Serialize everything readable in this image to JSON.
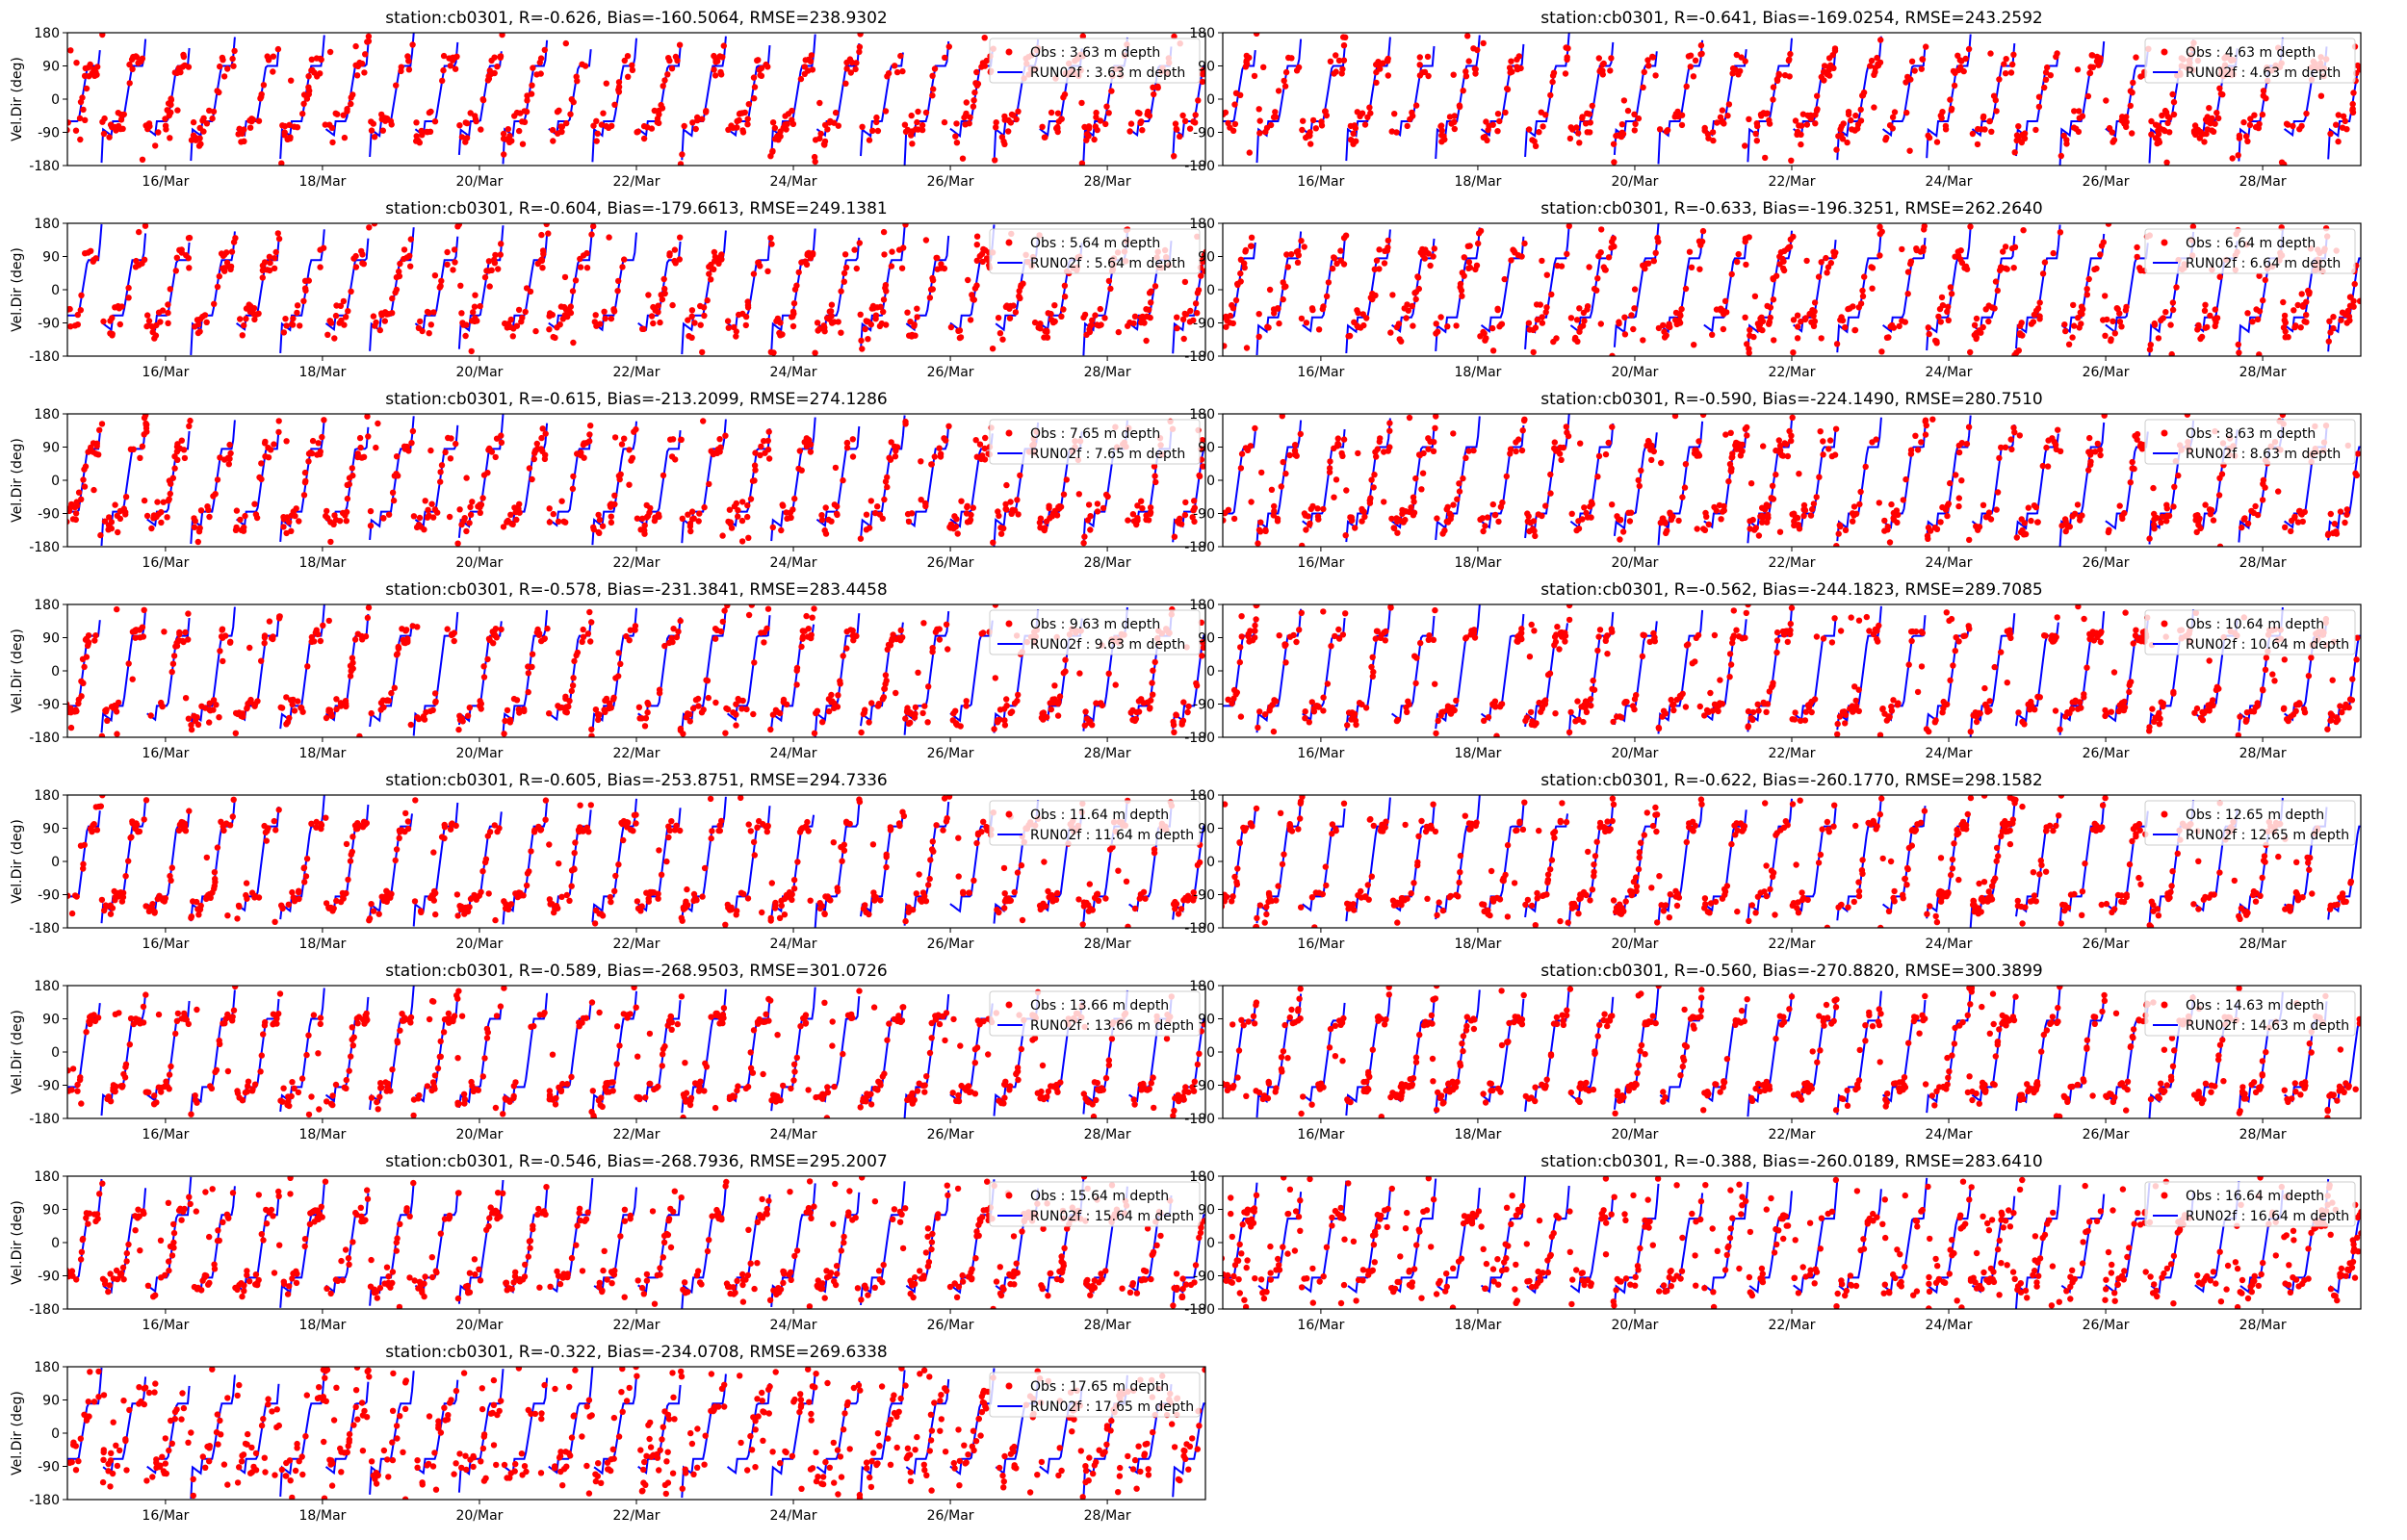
{
  "figure": {
    "background": "#ffffff",
    "obs_color": "#ff0000",
    "model_color": "#0000ff"
  },
  "chart_data": [
    {
      "type": "line",
      "title": "station:cb0301, R=-0.626, Bias=-160.5064, RMSE=238.9302",
      "ylabel": "Vel.Dir (deg)",
      "ylim": [
        -180,
        180
      ],
      "yticks": [
        "180",
        "90",
        "0",
        "-90",
        "-180"
      ],
      "x_ticks": [
        "16/Mar",
        "18/Mar",
        "20/Mar",
        "22/Mar",
        "24/Mar",
        "26/Mar",
        "28/Mar"
      ],
      "legend": [
        "Obs : 3.63 m depth",
        "RUN02f : 3.63 m depth"
      ],
      "legend_loc": "upper right",
      "series": [
        {
          "name": "Obs : 3.63 m depth",
          "style": "dots",
          "color": "#ff0000"
        },
        {
          "name": "RUN02f : 3.63 m depth",
          "style": "line",
          "color": "#0000ff"
        }
      ],
      "pattern": {
        "base": -60,
        "amp": 150,
        "scatter": 30,
        "noise_frac": 0.06,
        "seed": 11
      }
    },
    {
      "type": "line",
      "title": "station:cb0301, R=-0.641, Bias=-169.0254, RMSE=243.2592",
      "ylabel": "",
      "ylim": [
        -180,
        180
      ],
      "yticks": [
        "180",
        "90",
        "0",
        "-90",
        "-180"
      ],
      "x_ticks": [
        "16/Mar",
        "18/Mar",
        "20/Mar",
        "22/Mar",
        "24/Mar",
        "26/Mar",
        "28/Mar"
      ],
      "legend": [
        "Obs : 4.63 m depth",
        "RUN02f : 4.63 m depth"
      ],
      "legend_loc": "upper right",
      "series": [
        {
          "name": "Obs : 4.63 m depth",
          "style": "dots",
          "color": "#ff0000"
        },
        {
          "name": "RUN02f : 4.63 m depth",
          "style": "line",
          "color": "#0000ff"
        }
      ],
      "pattern": {
        "base": -60,
        "amp": 150,
        "scatter": 30,
        "noise_frac": 0.06,
        "seed": 12
      }
    },
    {
      "type": "line",
      "title": "station:cb0301, R=-0.604, Bias=-179.6613, RMSE=249.1381",
      "ylabel": "Vel.Dir (deg)",
      "ylim": [
        -180,
        180
      ],
      "yticks": [
        "180",
        "90",
        "0",
        "-90",
        "-180"
      ],
      "x_ticks": [
        "16/Mar",
        "18/Mar",
        "20/Mar",
        "22/Mar",
        "24/Mar",
        "26/Mar",
        "28/Mar"
      ],
      "legend": [
        "Obs : 5.64 m depth",
        "RUN02f : 5.64 m depth"
      ],
      "legend_loc": "upper right",
      "series": [
        {
          "name": "Obs : 5.64 m depth",
          "style": "dots",
          "color": "#ff0000"
        },
        {
          "name": "RUN02f : 5.64 m depth",
          "style": "line",
          "color": "#0000ff"
        }
      ],
      "pattern": {
        "base": -70,
        "amp": 150,
        "scatter": 30,
        "noise_frac": 0.07,
        "seed": 13
      }
    },
    {
      "type": "line",
      "title": "station:cb0301, R=-0.633, Bias=-196.3251, RMSE=262.2640",
      "ylabel": "",
      "ylim": [
        -180,
        180
      ],
      "yticks": [
        "180",
        "90",
        "0",
        "-90",
        "-180"
      ],
      "x_ticks": [
        "16/Mar",
        "18/Mar",
        "20/Mar",
        "22/Mar",
        "24/Mar",
        "26/Mar",
        "28/Mar"
      ],
      "legend": [
        "Obs : 6.64 m depth",
        "RUN02f : 6.64 m depth"
      ],
      "legend_loc": "upper right",
      "series": [
        {
          "name": "Obs : 6.64 m depth",
          "style": "dots",
          "color": "#ff0000"
        },
        {
          "name": "RUN02f : 6.64 m depth",
          "style": "line",
          "color": "#0000ff"
        }
      ],
      "pattern": {
        "base": -75,
        "amp": 160,
        "scatter": 35,
        "noise_frac": 0.09,
        "seed": 14
      }
    },
    {
      "type": "line",
      "title": "station:cb0301, R=-0.615, Bias=-213.2099, RMSE=274.1286",
      "ylabel": "Vel.Dir (deg)",
      "ylim": [
        -180,
        180
      ],
      "yticks": [
        "180",
        "90",
        "0",
        "-90",
        "-180"
      ],
      "x_ticks": [
        "16/Mar",
        "18/Mar",
        "20/Mar",
        "22/Mar",
        "24/Mar",
        "26/Mar",
        "28/Mar"
      ],
      "legend": [
        "Obs : 7.65 m depth",
        "RUN02f : 7.65 m depth"
      ],
      "legend_loc": "upper right",
      "series": [
        {
          "name": "Obs : 7.65 m depth",
          "style": "dots",
          "color": "#ff0000"
        },
        {
          "name": "RUN02f : 7.65 m depth",
          "style": "line",
          "color": "#0000ff"
        }
      ],
      "pattern": {
        "base": -85,
        "amp": 170,
        "scatter": 30,
        "noise_frac": 0.08,
        "seed": 15
      }
    },
    {
      "type": "line",
      "title": "station:cb0301, R=-0.590, Bias=-224.1490, RMSE=280.7510",
      "ylabel": "",
      "ylim": [
        -180,
        180
      ],
      "yticks": [
        "180",
        "90",
        "0",
        "-90",
        "-180"
      ],
      "x_ticks": [
        "16/Mar",
        "18/Mar",
        "20/Mar",
        "22/Mar",
        "24/Mar",
        "26/Mar",
        "28/Mar"
      ],
      "legend": [
        "Obs : 8.63 m depth",
        "RUN02f : 8.63 m depth"
      ],
      "legend_loc": "upper right",
      "series": [
        {
          "name": "Obs : 8.63 m depth",
          "style": "dots",
          "color": "#ff0000"
        },
        {
          "name": "RUN02f : 8.63 m depth",
          "style": "line",
          "color": "#0000ff"
        }
      ],
      "pattern": {
        "base": -90,
        "amp": 180,
        "scatter": 25,
        "noise_frac": 0.08,
        "seed": 16
      }
    },
    {
      "type": "line",
      "title": "station:cb0301, R=-0.578, Bias=-231.3841, RMSE=283.4458",
      "ylabel": "Vel.Dir (deg)",
      "ylim": [
        -180,
        180
      ],
      "yticks": [
        "180",
        "90",
        "0",
        "-90",
        "-180"
      ],
      "x_ticks": [
        "16/Mar",
        "18/Mar",
        "20/Mar",
        "22/Mar",
        "24/Mar",
        "26/Mar",
        "28/Mar"
      ],
      "legend": [
        "Obs : 9.63 m depth",
        "RUN02f : 9.63 m depth"
      ],
      "legend_loc": "upper right",
      "series": [
        {
          "name": "Obs : 9.63 m depth",
          "style": "dots",
          "color": "#ff0000"
        },
        {
          "name": "RUN02f : 9.63 m depth",
          "style": "line",
          "color": "#0000ff"
        }
      ],
      "pattern": {
        "base": -95,
        "amp": 190,
        "scatter": 20,
        "noise_frac": 0.09,
        "seed": 17
      }
    },
    {
      "type": "line",
      "title": "station:cb0301, R=-0.562, Bias=-244.1823, RMSE=289.7085",
      "ylabel": "",
      "ylim": [
        -180,
        180
      ],
      "yticks": [
        "180",
        "90",
        "0",
        "-90",
        "-180"
      ],
      "x_ticks": [
        "16/Mar",
        "18/Mar",
        "20/Mar",
        "22/Mar",
        "24/Mar",
        "26/Mar",
        "28/Mar"
      ],
      "legend": [
        "Obs : 10.64 m depth",
        "RUN02f : 10.64 m depth"
      ],
      "legend_loc": "upper right",
      "series": [
        {
          "name": "Obs : 10.64 m depth",
          "style": "dots",
          "color": "#ff0000"
        },
        {
          "name": "RUN02f : 10.64 m depth",
          "style": "line",
          "color": "#0000ff"
        }
      ],
      "pattern": {
        "base": -95,
        "amp": 190,
        "scatter": 18,
        "noise_frac": 0.1,
        "seed": 18
      }
    },
    {
      "type": "line",
      "title": "station:cb0301, R=-0.605, Bias=-253.8751, RMSE=294.7336",
      "ylabel": "Vel.Dir (deg)",
      "ylim": [
        -180,
        180
      ],
      "yticks": [
        "180",
        "90",
        "0",
        "-90",
        "-180"
      ],
      "x_ticks": [
        "16/Mar",
        "18/Mar",
        "20/Mar",
        "22/Mar",
        "24/Mar",
        "26/Mar",
        "28/Mar"
      ],
      "legend": [
        "Obs : 11.64 m depth",
        "RUN02f : 11.64 m depth"
      ],
      "legend_loc": "upper right",
      "series": [
        {
          "name": "Obs : 11.64 m depth",
          "style": "dots",
          "color": "#ff0000"
        },
        {
          "name": "RUN02f : 11.64 m depth",
          "style": "line",
          "color": "#0000ff"
        }
      ],
      "pattern": {
        "base": -95,
        "amp": 190,
        "scatter": 15,
        "noise_frac": 0.1,
        "seed": 19
      }
    },
    {
      "type": "line",
      "title": "station:cb0301, R=-0.622, Bias=-260.1770, RMSE=298.1582",
      "ylabel": "",
      "ylim": [
        -180,
        180
      ],
      "yticks": [
        "180",
        "90",
        "0",
        "-90",
        "-180"
      ],
      "x_ticks": [
        "16/Mar",
        "18/Mar",
        "20/Mar",
        "22/Mar",
        "24/Mar",
        "26/Mar",
        "28/Mar"
      ],
      "legend": [
        "Obs : 12.65 m depth",
        "RUN02f : 12.65 m depth"
      ],
      "legend_loc": "upper right",
      "series": [
        {
          "name": "Obs : 12.65 m depth",
          "style": "dots",
          "color": "#ff0000"
        },
        {
          "name": "RUN02f : 12.65 m depth",
          "style": "line",
          "color": "#0000ff"
        }
      ],
      "pattern": {
        "base": -95,
        "amp": 190,
        "scatter": 15,
        "noise_frac": 0.11,
        "seed": 20
      }
    },
    {
      "type": "line",
      "title": "station:cb0301, R=-0.589, Bias=-268.9503, RMSE=301.0726",
      "ylabel": "Vel.Dir (deg)",
      "ylim": [
        -180,
        180
      ],
      "yticks": [
        "180",
        "90",
        "0",
        "-90",
        "-180"
      ],
      "x_ticks": [
        "16/Mar",
        "18/Mar",
        "20/Mar",
        "22/Mar",
        "24/Mar",
        "26/Mar",
        "28/Mar"
      ],
      "legend": [
        "Obs : 13.66 m depth",
        "RUN02f : 13.66 m depth"
      ],
      "legend_loc": "upper right",
      "series": [
        {
          "name": "Obs : 13.66 m depth",
          "style": "dots",
          "color": "#ff0000"
        },
        {
          "name": "RUN02f : 13.66 m depth",
          "style": "line",
          "color": "#0000ff"
        }
      ],
      "pattern": {
        "base": -95,
        "amp": 185,
        "scatter": 15,
        "noise_frac": 0.12,
        "seed": 21
      }
    },
    {
      "type": "line",
      "title": "station:cb0301, R=-0.560, Bias=-270.8820, RMSE=300.3899",
      "ylabel": "",
      "ylim": [
        -180,
        180
      ],
      "yticks": [
        "180",
        "90",
        "0",
        "-90",
        "-180"
      ],
      "x_ticks": [
        "16/Mar",
        "18/Mar",
        "20/Mar",
        "22/Mar",
        "24/Mar",
        "26/Mar",
        "28/Mar"
      ],
      "legend": [
        "Obs : 14.63 m depth",
        "RUN02f : 14.63 m depth"
      ],
      "legend_loc": "upper right",
      "series": [
        {
          "name": "Obs : 14.63 m depth",
          "style": "dots",
          "color": "#ff0000"
        },
        {
          "name": "RUN02f : 14.63 m depth",
          "style": "line",
          "color": "#0000ff"
        }
      ],
      "pattern": {
        "base": -95,
        "amp": 180,
        "scatter": 15,
        "noise_frac": 0.12,
        "seed": 22
      }
    },
    {
      "type": "line",
      "title": "station:cb0301, R=-0.546, Bias=-268.7936, RMSE=295.2007",
      "ylabel": "Vel.Dir (deg)",
      "ylim": [
        -180,
        180
      ],
      "yticks": [
        "180",
        "90",
        "0",
        "-90",
        "-180"
      ],
      "x_ticks": [
        "16/Mar",
        "18/Mar",
        "20/Mar",
        "22/Mar",
        "24/Mar",
        "26/Mar",
        "28/Mar"
      ],
      "legend": [
        "Obs : 15.64 m depth",
        "RUN02f : 15.64 m depth"
      ],
      "legend_loc": "upper right",
      "series": [
        {
          "name": "Obs : 15.64 m depth",
          "style": "dots",
          "color": "#ff0000"
        },
        {
          "name": "RUN02f : 15.64 m depth",
          "style": "line",
          "color": "#0000ff"
        }
      ],
      "pattern": {
        "base": -95,
        "amp": 170,
        "scatter": 20,
        "noise_frac": 0.14,
        "seed": 23
      }
    },
    {
      "type": "line",
      "title": "station:cb0301, R=-0.388, Bias=-260.0189, RMSE=283.6410",
      "ylabel": "",
      "ylim": [
        -180,
        180
      ],
      "yticks": [
        "180",
        "90",
        "0",
        "-90",
        "-180"
      ],
      "x_ticks": [
        "16/Mar",
        "18/Mar",
        "20/Mar",
        "22/Mar",
        "24/Mar",
        "26/Mar",
        "28/Mar"
      ],
      "legend": [
        "Obs : 16.64 m depth",
        "RUN02f : 16.64 m depth"
      ],
      "legend_loc": "upper right",
      "series": [
        {
          "name": "Obs : 16.64 m depth",
          "style": "dots",
          "color": "#ff0000"
        },
        {
          "name": "RUN02f : 16.64 m depth",
          "style": "line",
          "color": "#0000ff"
        }
      ],
      "pattern": {
        "base": -95,
        "amp": 160,
        "scatter": 25,
        "noise_frac": 0.3,
        "seed": 24
      }
    },
    {
      "type": "line",
      "title": "station:cb0301, R=-0.322, Bias=-234.0708, RMSE=269.6338",
      "ylabel": "Vel.Dir (deg)",
      "ylim": [
        -180,
        180
      ],
      "yticks": [
        "180",
        "90",
        "0",
        "-90",
        "-180"
      ],
      "x_ticks": [
        "16/Mar",
        "18/Mar",
        "20/Mar",
        "22/Mar",
        "24/Mar",
        "26/Mar",
        "28/Mar"
      ],
      "legend": [
        "Obs : 17.65 m depth",
        "RUN02f : 17.65 m depth"
      ],
      "legend_loc": "upper right",
      "series": [
        {
          "name": "Obs : 17.65 m depth",
          "style": "dots",
          "color": "#ff0000"
        },
        {
          "name": "RUN02f : 17.65 m depth",
          "style": "line",
          "color": "#0000ff"
        }
      ],
      "pattern": {
        "base": -70,
        "amp": 150,
        "scatter": 45,
        "noise_frac": 0.35,
        "seed": 25
      }
    }
  ]
}
